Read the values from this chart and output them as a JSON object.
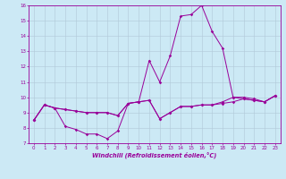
{
  "xlabel": "Windchill (Refroidissement éolien,°C)",
  "ylabel": "",
  "xlim": [
    -0.5,
    23.5
  ],
  "ylim": [
    7,
    16
  ],
  "xticks": [
    0,
    1,
    2,
    3,
    4,
    5,
    6,
    7,
    8,
    9,
    10,
    11,
    12,
    13,
    14,
    15,
    16,
    17,
    18,
    19,
    20,
    21,
    22,
    23
  ],
  "yticks": [
    7,
    8,
    9,
    10,
    11,
    12,
    13,
    14,
    15,
    16
  ],
  "line_color": "#990099",
  "bg_color": "#cce9f5",
  "grid_color": "#b0c8d8",
  "lines": [
    [
      8.5,
      9.5,
      9.3,
      8.1,
      7.9,
      7.6,
      7.6,
      7.3,
      7.8,
      9.6,
      9.7,
      12.4,
      11.0,
      12.7,
      15.3,
      15.4,
      16.0,
      14.3,
      13.2,
      10.0,
      9.9,
      9.8,
      9.7,
      10.1
    ],
    [
      8.5,
      9.5,
      9.3,
      9.2,
      9.1,
      9.0,
      9.0,
      9.0,
      8.8,
      9.6,
      9.7,
      9.8,
      8.6,
      9.0,
      9.4,
      9.4,
      9.5,
      9.5,
      9.6,
      9.7,
      9.9,
      9.8,
      9.7,
      10.1
    ],
    [
      8.5,
      9.5,
      9.3,
      9.2,
      9.1,
      9.0,
      9.0,
      9.0,
      8.8,
      9.6,
      9.7,
      9.8,
      8.6,
      9.0,
      9.4,
      9.4,
      9.5,
      9.5,
      9.7,
      10.0,
      10.0,
      9.9,
      9.7,
      10.1
    ]
  ]
}
